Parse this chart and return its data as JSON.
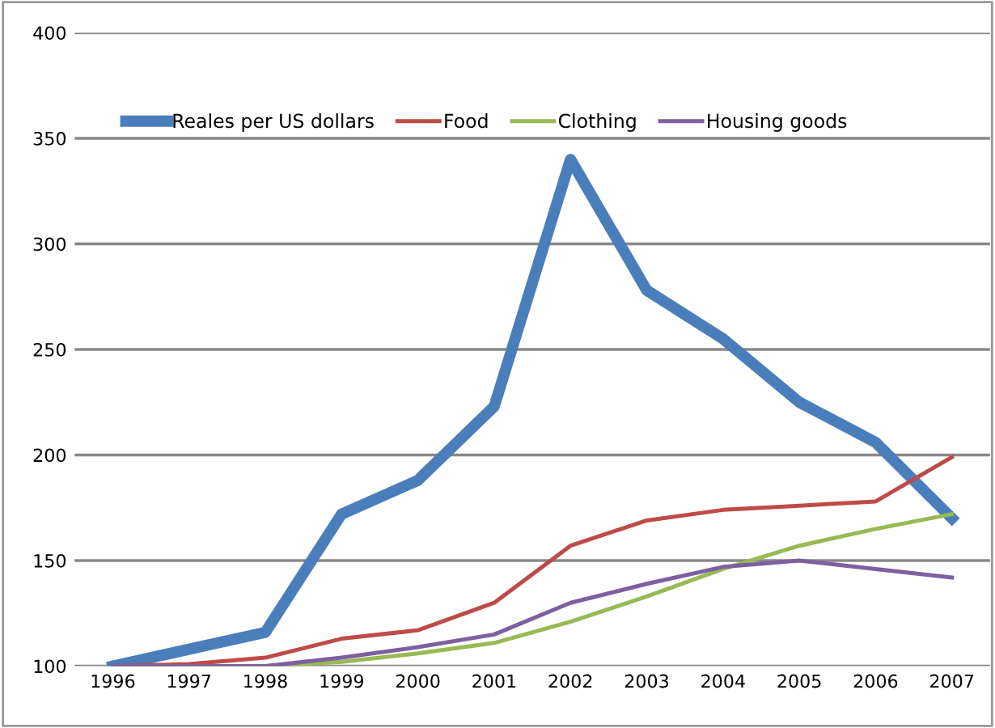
{
  "chart_data": {
    "type": "line",
    "categories": [
      "1996",
      "1997",
      "1998",
      "1999",
      "2000",
      "2001",
      "2002",
      "2003",
      "2004",
      "2005",
      "2006",
      "2007"
    ],
    "series": [
      {
        "name": "Reales per US dollars",
        "color": "#4a7ebb",
        "values": [
          100,
          108,
          116,
          172,
          188,
          223,
          340,
          278,
          255,
          225,
          206,
          170
        ]
      },
      {
        "name": "Food",
        "color": "#be4b48",
        "values": [
          100,
          101,
          104,
          113,
          117,
          130,
          157,
          169,
          174,
          176,
          178,
          199
        ]
      },
      {
        "name": "Clothing",
        "color": "#98b954",
        "values": [
          100,
          100,
          100,
          102,
          106,
          111,
          121,
          133,
          146,
          157,
          165,
          172
        ]
      },
      {
        "name": "Housing goods",
        "color": "#7d60a0",
        "values": [
          100,
          100,
          100,
          104,
          109,
          115,
          130,
          139,
          147,
          150,
          146,
          142
        ]
      }
    ],
    "ylim": [
      100,
      400
    ],
    "yticks": [
      100,
      150,
      200,
      250,
      300,
      350,
      400
    ],
    "grid": "y",
    "legend": "top",
    "marker": "none",
    "line_style": "solid"
  }
}
